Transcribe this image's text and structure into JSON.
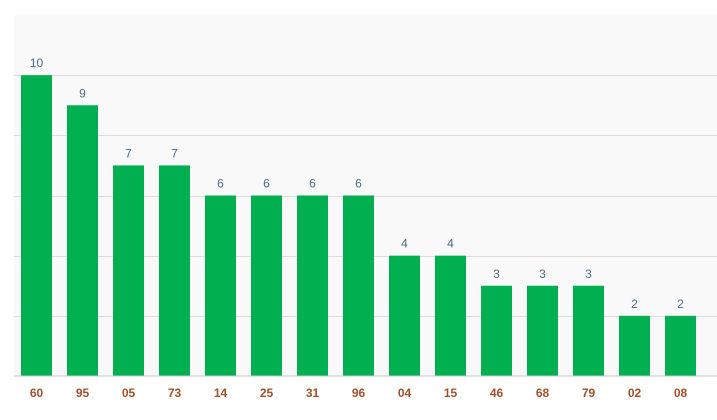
{
  "colors": {
    "plot_background": "#f9f9f9",
    "bar": "#00b050",
    "gridline": "#dcdcdc",
    "baseline": "#c8c8c8",
    "value_label": "#4a6d8c",
    "category_label": "#a0522d"
  },
  "chart_data": {
    "type": "bar",
    "categories": [
      "60",
      "95",
      "05",
      "73",
      "14",
      "25",
      "31",
      "96",
      "04",
      "15",
      "46",
      "68",
      "79",
      "02",
      "08"
    ],
    "values": [
      10,
      9,
      7,
      7,
      6,
      6,
      6,
      6,
      4,
      4,
      3,
      3,
      3,
      2,
      2
    ],
    "data_labels": true,
    "ylim": [
      0,
      12
    ],
    "y_gridline_step": 2,
    "grid": "horizontal",
    "y_tick_labels_shown": false,
    "legend": "none"
  }
}
